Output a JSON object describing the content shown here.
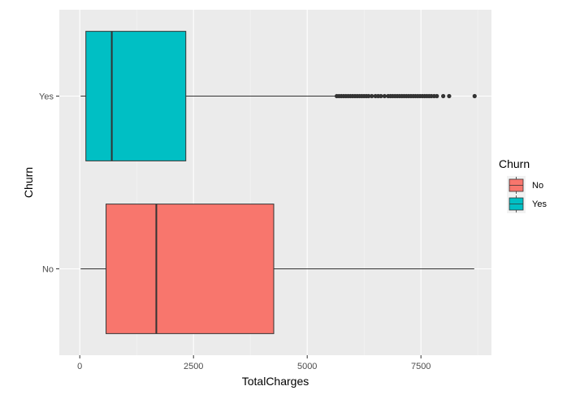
{
  "chart_data": {
    "type": "boxplot",
    "orientation": "horizontal",
    "title": "",
    "xlabel": "TotalCharges",
    "ylabel": "Churn",
    "xlim": [
      -450,
      9050
    ],
    "x_ticks": [
      0,
      2500,
      5000,
      7500
    ],
    "x_tick_labels": [
      "0",
      "2500",
      "5000",
      "7500"
    ],
    "categories": [
      "No",
      "Yes"
    ],
    "grid": true,
    "legend": {
      "title": "Churn",
      "position": "right",
      "entries": [
        "No",
        "Yes"
      ]
    },
    "series": [
      {
        "name": "No",
        "color": "#F8766D",
        "whisker_low": 19,
        "q1": 578,
        "median": 1683,
        "q3": 4264,
        "whisker_high": 8672,
        "outliers": []
      },
      {
        "name": "Yes",
        "color": "#00BFC4",
        "whisker_low": 19,
        "q1": 134,
        "median": 704,
        "q3": 2331,
        "whisker_high": 5624,
        "outliers": [
          5650,
          5700,
          5750,
          5800,
          5850,
          5900,
          5950,
          6000,
          6050,
          6100,
          6150,
          6200,
          6250,
          6300,
          6350,
          6420,
          6500,
          6560,
          6620,
          6700,
          6780,
          6830,
          6880,
          6930,
          6980,
          7030,
          7080,
          7130,
          7180,
          7230,
          7280,
          7330,
          7380,
          7430,
          7480,
          7530,
          7580,
          7630,
          7680,
          7730,
          7790,
          7850,
          7990,
          8120,
          8680
        ]
      }
    ]
  }
}
